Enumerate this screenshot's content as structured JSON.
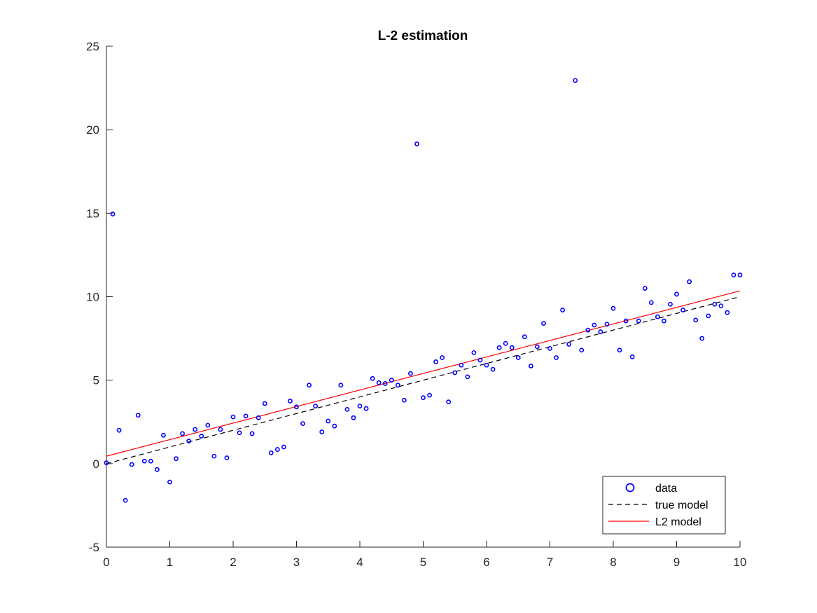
{
  "chart_data": {
    "type": "scatter",
    "title": "L-2 estimation",
    "xlabel": "",
    "ylabel": "",
    "xlim": [
      0,
      10
    ],
    "ylim": [
      -5,
      25
    ],
    "xticks": [
      0,
      1,
      2,
      3,
      4,
      5,
      6,
      7,
      8,
      9,
      10
    ],
    "yticks": [
      -5,
      0,
      5,
      10,
      15,
      20,
      25
    ],
    "grid": false,
    "legend_position": "bottom-right",
    "series": [
      {
        "name": "data",
        "kind": "scatter",
        "marker": "circle",
        "color": "#0000ff",
        "x": [
          0.0,
          0.1,
          0.2,
          0.3,
          0.4,
          0.5,
          0.6,
          0.7,
          0.8,
          0.9,
          1.0,
          1.1,
          1.2,
          1.3,
          1.4,
          1.5,
          1.6,
          1.7,
          1.8,
          1.9,
          2.0,
          2.1,
          2.2,
          2.3,
          2.4,
          2.5,
          2.6,
          2.7,
          2.8,
          2.9,
          3.0,
          3.1,
          3.2,
          3.3,
          3.4,
          3.5,
          3.6,
          3.7,
          3.8,
          3.9,
          4.0,
          4.1,
          4.2,
          4.3,
          4.4,
          4.5,
          4.6,
          4.7,
          4.8,
          4.9,
          5.0,
          5.1,
          5.2,
          5.3,
          5.4,
          5.5,
          5.6,
          5.7,
          5.8,
          5.9,
          6.0,
          6.1,
          6.2,
          6.3,
          6.4,
          6.5,
          6.6,
          6.7,
          6.8,
          6.9,
          7.0,
          7.1,
          7.2,
          7.3,
          7.4,
          7.5,
          7.6,
          7.7,
          7.8,
          7.9,
          8.0,
          8.1,
          8.2,
          8.3,
          8.4,
          8.5,
          8.6,
          8.7,
          8.8,
          8.9,
          9.0,
          9.1,
          9.2,
          9.3,
          9.4,
          9.5,
          9.6,
          9.7,
          9.8,
          9.9,
          10.0
        ],
        "y": [
          0.05,
          14.95,
          2.0,
          -2.2,
          -0.05,
          2.9,
          0.15,
          0.15,
          -0.35,
          1.7,
          -1.1,
          0.3,
          1.8,
          1.35,
          2.05,
          1.65,
          2.3,
          0.45,
          2.05,
          0.35,
          2.8,
          1.85,
          2.85,
          1.8,
          2.75,
          3.6,
          0.65,
          0.85,
          1.0,
          3.75,
          3.4,
          2.4,
          4.7,
          3.45,
          1.9,
          2.55,
          2.25,
          4.7,
          3.25,
          2.75,
          3.45,
          3.3,
          5.1,
          4.85,
          4.8,
          5.0,
          4.7,
          3.8,
          5.4,
          19.15,
          3.95,
          4.1,
          6.1,
          6.35,
          3.7,
          5.45,
          5.9,
          5.2,
          6.65,
          6.2,
          5.9,
          5.65,
          6.95,
          7.2,
          6.95,
          6.35,
          7.6,
          5.85,
          7.0,
          8.4,
          6.9,
          6.35,
          9.2,
          7.15,
          22.95,
          6.8,
          8.0,
          8.3,
          7.9,
          8.35,
          9.3,
          6.8,
          8.55,
          6.4,
          8.55,
          10.5,
          9.65,
          8.8,
          8.55,
          9.55,
          10.15,
          9.2,
          10.9,
          8.6,
          7.5,
          8.85,
          9.55,
          9.45,
          9.05,
          11.3,
          11.3
        ]
      },
      {
        "name": "true model",
        "kind": "line",
        "style": "dashed",
        "color": "#000000",
        "x": [
          0,
          10
        ],
        "y": [
          0,
          10
        ]
      },
      {
        "name": "L2 model",
        "kind": "line",
        "style": "solid",
        "color": "#ff0000",
        "x": [
          0,
          10
        ],
        "y": [
          0.45,
          10.35
        ]
      }
    ]
  }
}
